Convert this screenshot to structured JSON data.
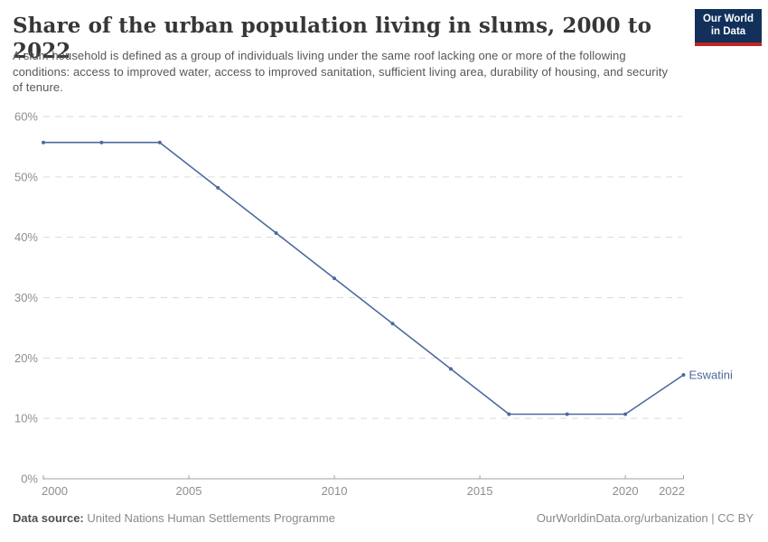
{
  "header": {
    "title": "Share of the urban population living in slums, 2000 to 2022",
    "logo": {
      "line1": "Our World",
      "line2": "in Data"
    }
  },
  "subtitle": "A slum household is defined as a group of individuals living under the same roof lacking one or more of the following conditions: access to improved water, access to improved sanitation, sufficient living area, durability of housing, and security of tenure.",
  "chart_data": {
    "type": "line",
    "title": "Share of the urban population living in slums, 2000 to 2022",
    "unit": "%",
    "x": [
      2000,
      2002,
      2004,
      2006,
      2008,
      2010,
      2012,
      2014,
      2016,
      2018,
      2020,
      2022
    ],
    "series": [
      {
        "name": "Eswatini",
        "color": "#4C6A9C",
        "values": [
          55.7,
          55.7,
          55.7,
          48.2,
          40.7,
          33.2,
          25.7,
          18.2,
          10.7,
          10.7,
          10.7,
          17.2
        ]
      }
    ],
    "xlim": [
      2000,
      2022
    ],
    "ylim": [
      0,
      60
    ],
    "yticks": [
      {
        "value": 0,
        "label": "0%"
      },
      {
        "value": 10,
        "label": "10%"
      },
      {
        "value": 20,
        "label": "20%"
      },
      {
        "value": 30,
        "label": "30%"
      },
      {
        "value": 40,
        "label": "40%"
      },
      {
        "value": 50,
        "label": "50%"
      },
      {
        "value": 60,
        "label": "60%"
      }
    ],
    "xticks": [
      {
        "value": 2000,
        "label": "2000"
      },
      {
        "value": 2005,
        "label": "2005"
      },
      {
        "value": 2010,
        "label": "2010"
      },
      {
        "value": 2015,
        "label": "2015"
      },
      {
        "value": 2020,
        "label": "2020"
      },
      {
        "value": 2022,
        "label": "2022"
      }
    ],
    "grid": "horizontal-dashed",
    "legend": "end-of-line-label"
  },
  "footer": {
    "datasource_label": "Data source:",
    "datasource_value": " United Nations Human Settlements Programme",
    "link": "OurWorldinData.org/urbanization | CC BY"
  },
  "colors": {
    "line": "#4C6A9C",
    "grid": "#dadada",
    "axis": "#a0a0a0",
    "tick_label": "#8e8e8e",
    "title": "#383636",
    "subtitle": "#575757",
    "logo_bg": "#12305a",
    "logo_stripe": "#bf2625"
  }
}
